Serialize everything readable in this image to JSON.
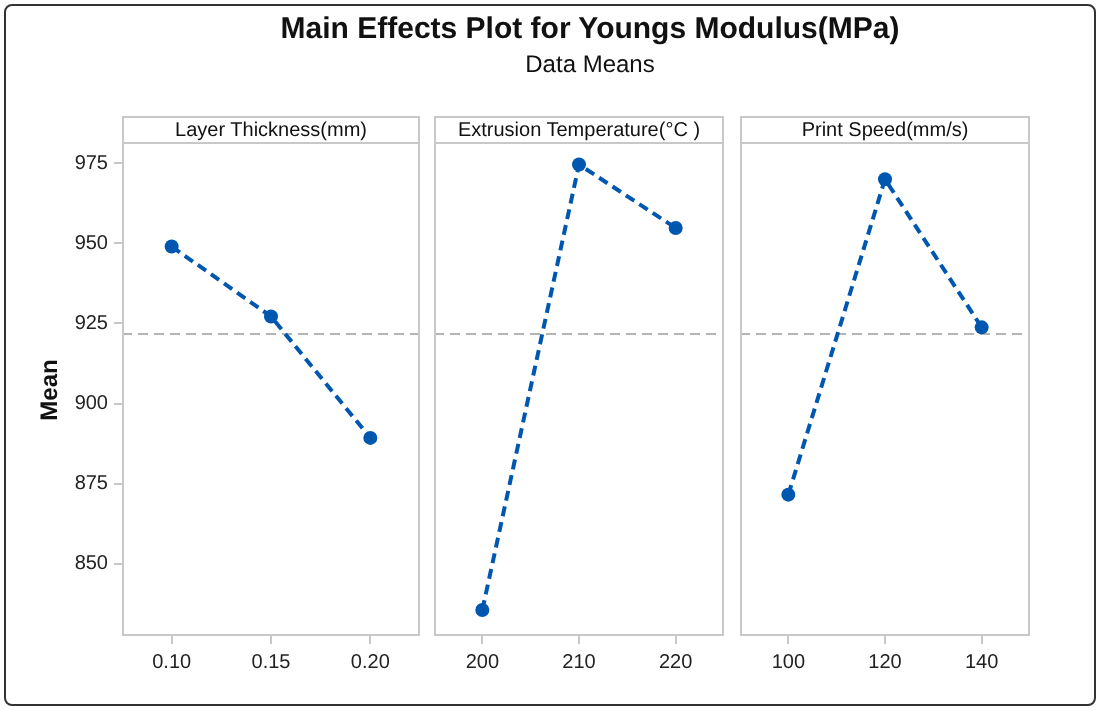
{
  "chart_data": [
    {
      "type": "line",
      "title": "Layer Thickness(mm)",
      "ylabel": "Mean",
      "annotations": [
        "Main Effects Plot for Youngs Modulus(MPa)",
        "Data Means"
      ],
      "x": [
        0.1,
        0.15,
        0.2
      ],
      "series": [
        {
          "color": "#0057b0",
          "values": [
            949,
            927.2,
            889.3
          ]
        }
      ],
      "xlim": [
        0.075,
        0.225
      ],
      "xticks": [
        {
          "value": 0.1,
          "label": "0.10"
        },
        {
          "value": 0.15,
          "label": "0.15"
        },
        {
          "value": 0.2,
          "label": "0.20"
        }
      ],
      "ylim": [
        827.5,
        981
      ],
      "yticks": [
        850,
        875,
        900,
        925,
        950,
        975
      ],
      "ref_lines": [
        {
          "axis": "y",
          "value": 921.7,
          "color": "#b4b4b4",
          "line_style": "dashed"
        }
      ],
      "grid": false,
      "legend": false,
      "marker": "circle",
      "line_style": "dashed"
    },
    {
      "type": "line",
      "title": "Extrusion Temperature(°C )",
      "x": [
        200,
        210,
        220
      ],
      "series": [
        {
          "color": "#0057b0",
          "values": [
            835.6,
            974.6,
            954.8
          ]
        }
      ],
      "xlim": [
        195,
        225
      ],
      "xticks": [
        200,
        210,
        220
      ],
      "ylim": [
        827.5,
        981
      ],
      "yticks": [
        850,
        875,
        900,
        925,
        950,
        975
      ],
      "tick_labels": "x",
      "ref_lines": [
        {
          "axis": "y",
          "value": 921.7,
          "color": "#b4b4b4",
          "line_style": "dashed"
        }
      ],
      "grid": false,
      "legend": false,
      "marker": "circle",
      "line_style": "dashed"
    },
    {
      "type": "line",
      "title": "Print Speed(mm/s)",
      "x": [
        100,
        120,
        140
      ],
      "series": [
        {
          "color": "#0057b0",
          "values": [
            871.6,
            970,
            923.8
          ]
        }
      ],
      "xlim": [
        90,
        150
      ],
      "xticks": [
        100,
        120,
        140
      ],
      "ylim": [
        827.5,
        981
      ],
      "yticks": [
        850,
        875,
        900,
        925,
        950,
        975
      ],
      "tick_labels": "x",
      "ref_lines": [
        {
          "axis": "y",
          "value": 921.7,
          "color": "#b4b4b4",
          "line_style": "dashed"
        }
      ],
      "grid": false,
      "legend": false,
      "marker": "circle",
      "line_style": "dashed"
    }
  ]
}
